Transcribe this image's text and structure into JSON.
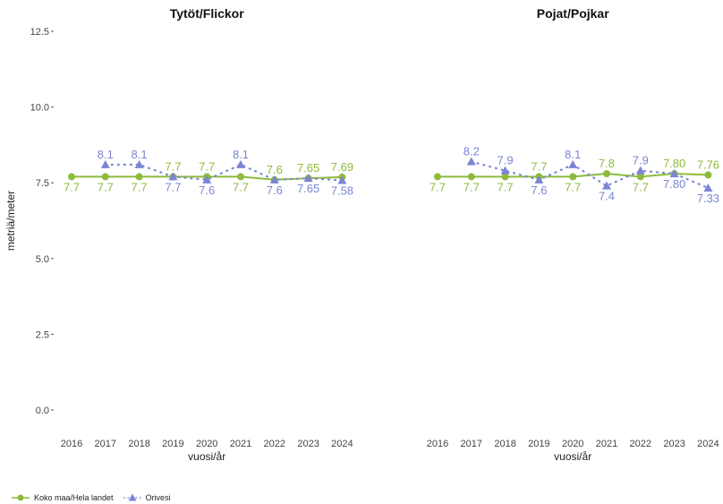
{
  "chart_data": {
    "type": "line",
    "ylabel": "metriä/meter",
    "ylim": [
      0,
      12.5
    ],
    "y_ticks": [
      0,
      2.5,
      5,
      7.5,
      10,
      12.5
    ],
    "y_tick_labels": [
      "0.0",
      "2.5",
      "5.0",
      "7.5",
      "10.0",
      "12.5"
    ],
    "grid": false,
    "legend_position": "bottom-left",
    "panels": [
      {
        "title": "Tytöt/Flickor",
        "xlabel": "vuosi/år",
        "x": [
          "2016",
          "2017",
          "2018",
          "2019",
          "2020",
          "2021",
          "2022",
          "2023",
          "2024"
        ],
        "series": [
          {
            "name": "Koko maa/Hela landet",
            "color": "#8cbb3c",
            "marker": "circle",
            "line_style": "solid",
            "values": [
              7.7,
              7.7,
              7.7,
              7.7,
              7.7,
              7.7,
              7.6,
              7.65,
              7.69
            ],
            "labels": [
              "7.7",
              "7.7",
              "7.7",
              "7.7",
              "7.7",
              "7.7",
              "7.6",
              "7.65",
              "7.69"
            ]
          },
          {
            "name": "Orivesi",
            "color": "#7b85d4",
            "marker": "triangle",
            "line_style": "dotted",
            "values": [
              null,
              8.1,
              8.1,
              7.7,
              7.6,
              8.1,
              7.6,
              7.65,
              7.58
            ],
            "labels": [
              "",
              "8.1",
              "8.1",
              "7.7",
              "7.6",
              "8.1",
              "7.6",
              "7.65",
              "7.58"
            ]
          }
        ]
      },
      {
        "title": "Pojat/Pojkar",
        "xlabel": "vuosi/år",
        "x": [
          "2016",
          "2017",
          "2018",
          "2019",
          "2020",
          "2021",
          "2022",
          "2023",
          "2024"
        ],
        "series": [
          {
            "name": "Koko maa/Hela landet",
            "color": "#8cbb3c",
            "marker": "circle",
            "line_style": "solid",
            "values": [
              7.7,
              7.7,
              7.7,
              7.7,
              7.7,
              7.8,
              7.7,
              7.8,
              7.76
            ],
            "labels": [
              "7.7",
              "7.7",
              "7.7",
              "7.7",
              "7.7",
              "7.8",
              "7.7",
              "7.80",
              "7.76"
            ]
          },
          {
            "name": "Orivesi",
            "color": "#7b85d4",
            "marker": "triangle",
            "line_style": "dotted",
            "values": [
              null,
              8.2,
              7.9,
              7.6,
              8.1,
              7.4,
              7.9,
              7.8,
              7.33
            ],
            "labels": [
              "",
              "8.2",
              "7.9",
              "7.6",
              "8.1",
              "7.4",
              "7.9",
              "7.80",
              "7.33"
            ]
          }
        ]
      }
    ],
    "legend": [
      {
        "name": "Koko maa/Hela landet",
        "color": "#8cbb3c",
        "marker": "circle",
        "line_style": "solid"
      },
      {
        "name": "Orivesi",
        "color": "#7b85d4",
        "marker": "triangle",
        "line_style": "dotted"
      }
    ]
  }
}
